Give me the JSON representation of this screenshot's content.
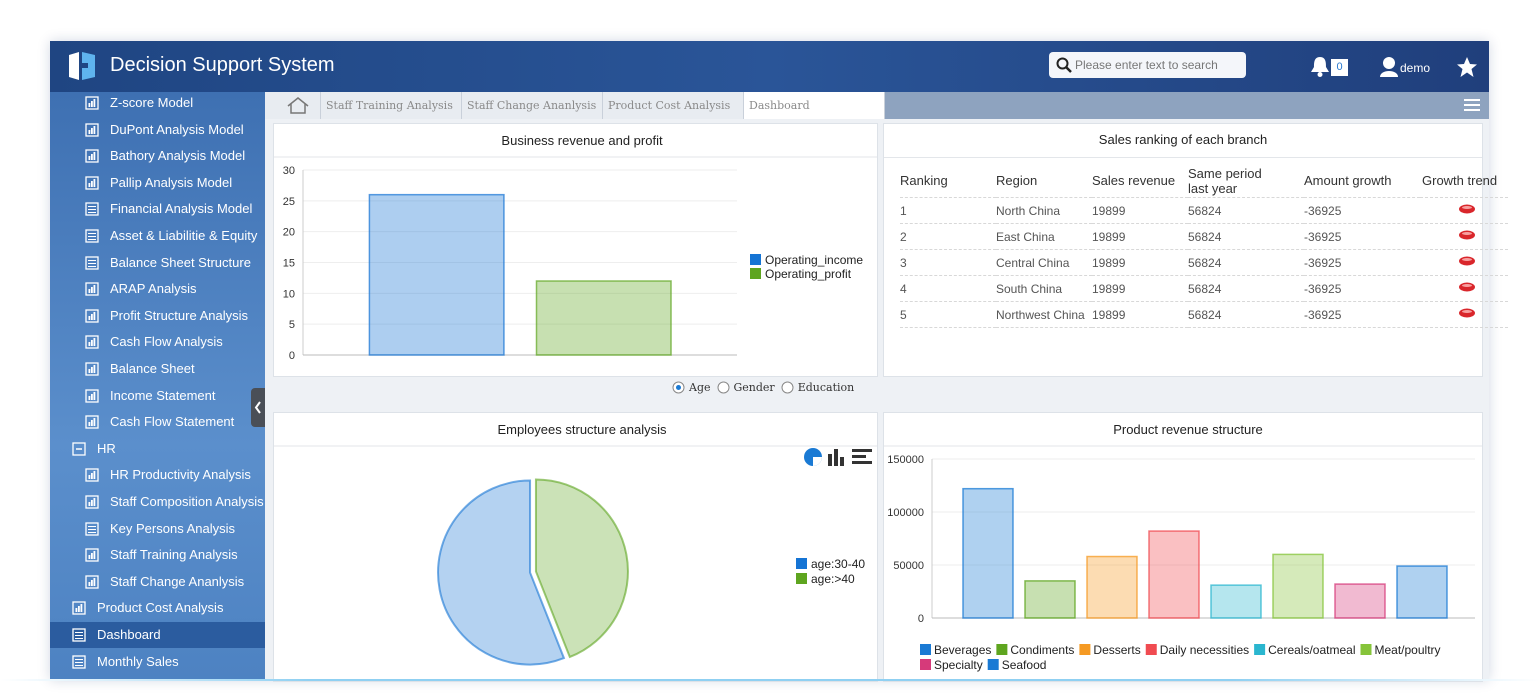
{
  "header": {
    "title": "Decision Support System",
    "search_placeholder": "Please enter text to search",
    "notifications": 0,
    "user": "demo"
  },
  "sidebar": {
    "items": [
      {
        "label": "Z-score Model",
        "icon": "chart",
        "level": 2
      },
      {
        "label": "DuPont Analysis Model",
        "icon": "chart",
        "level": 2
      },
      {
        "label": "Bathory Analysis Model",
        "icon": "chart",
        "level": 2
      },
      {
        "label": "Pallip Analysis Model",
        "icon": "chart",
        "level": 2
      },
      {
        "label": "Financial Analysis Model",
        "icon": "table",
        "level": 2
      },
      {
        "label": "Asset & Liabilitie & Equity",
        "icon": "table",
        "level": 2
      },
      {
        "label": "Balance Sheet Structure",
        "icon": "table",
        "level": 2
      },
      {
        "label": "ARAP Analysis",
        "icon": "chart",
        "level": 2
      },
      {
        "label": "Profit Structure Analysis",
        "icon": "chart",
        "level": 2
      },
      {
        "label": "Cash Flow Analysis",
        "icon": "chart",
        "level": 2
      },
      {
        "label": "Balance Sheet",
        "icon": "chart",
        "level": 2
      },
      {
        "label": "Income Statement",
        "icon": "chart",
        "level": 2
      },
      {
        "label": "Cash Flow Statement",
        "icon": "chart",
        "level": 2
      },
      {
        "label": "HR",
        "icon": "folder",
        "level": 1
      },
      {
        "label": "HR Productivity Analysis",
        "icon": "chart",
        "level": 2
      },
      {
        "label": "Staff Composition Analysis",
        "icon": "chart",
        "level": 2
      },
      {
        "label": "Key Persons Analysis",
        "icon": "table",
        "level": 2
      },
      {
        "label": "Staff Training Analysis",
        "icon": "chart",
        "level": 2
      },
      {
        "label": "Staff Change Ananlysis",
        "icon": "chart",
        "level": 2
      },
      {
        "label": "Product Cost Analysis",
        "icon": "chart",
        "level": 1
      },
      {
        "label": "Dashboard",
        "icon": "table",
        "level": 1,
        "active": true
      },
      {
        "label": "Monthly Sales",
        "icon": "table",
        "level": 1
      }
    ]
  },
  "tabs": {
    "items": [
      "Staff Training Analysis",
      "Staff Change Ananlysis",
      "Product Cost Analysis",
      "Dashboard"
    ],
    "active": 3
  },
  "revenue_chart": {
    "type": "bar",
    "title": "Business revenue and profit",
    "series": [
      {
        "name": "Operating_income",
        "color": "#1574d4",
        "values": [
          26
        ]
      },
      {
        "name": "Operating_profit",
        "color": "#5ea51f",
        "values": [
          12
        ]
      }
    ],
    "ylim": [
      0,
      30
    ],
    "yticks": [
      0,
      5,
      10,
      15,
      20,
      25,
      30
    ],
    "grid": true
  },
  "filter": {
    "options": [
      "Age",
      "Gender",
      "Education"
    ],
    "selected": 0
  },
  "ranking_table": {
    "title": "Sales ranking of each branch",
    "columns": [
      "Ranking",
      "Region",
      "Sales revenue",
      "Same period last year",
      "Amount growth",
      "Growth trend"
    ],
    "rows": [
      [
        1,
        "North China",
        19899,
        56824,
        -36925
      ],
      [
        2,
        "East China",
        19899,
        56824,
        -36925
      ],
      [
        3,
        "Central China",
        19899,
        56824,
        -36925
      ],
      [
        4,
        "South China",
        19899,
        56824,
        -36925
      ],
      [
        5,
        "Northwest China",
        19899,
        56824,
        -36925
      ]
    ]
  },
  "pie_chart": {
    "type": "pie",
    "title": "Employees structure analysis",
    "categories": [
      "age:30-40",
      "age:>40"
    ],
    "values": [
      56,
      44
    ],
    "colors": [
      "#1574d4",
      "#5ea51f"
    ]
  },
  "product_chart": {
    "type": "bar",
    "title": "Product revenue structure",
    "categories": [
      "Beverages",
      "Condiments",
      "Desserts",
      "Daily necessities",
      "Cereals/oatmeal",
      "Meat/poultry",
      "Specialty",
      "Seafood"
    ],
    "values": [
      122000,
      35000,
      58000,
      82000,
      31000,
      60000,
      32000,
      49000
    ],
    "colors": [
      "#1a7ad4",
      "#5ea51f",
      "#f59a23",
      "#f04b51",
      "#2ab6cf",
      "#86c43a",
      "#d63a7a",
      "#1a7ad4"
    ],
    "ylim": [
      0,
      150000
    ],
    "yticks": [
      0,
      50000,
      100000,
      150000
    ],
    "grid": true
  }
}
